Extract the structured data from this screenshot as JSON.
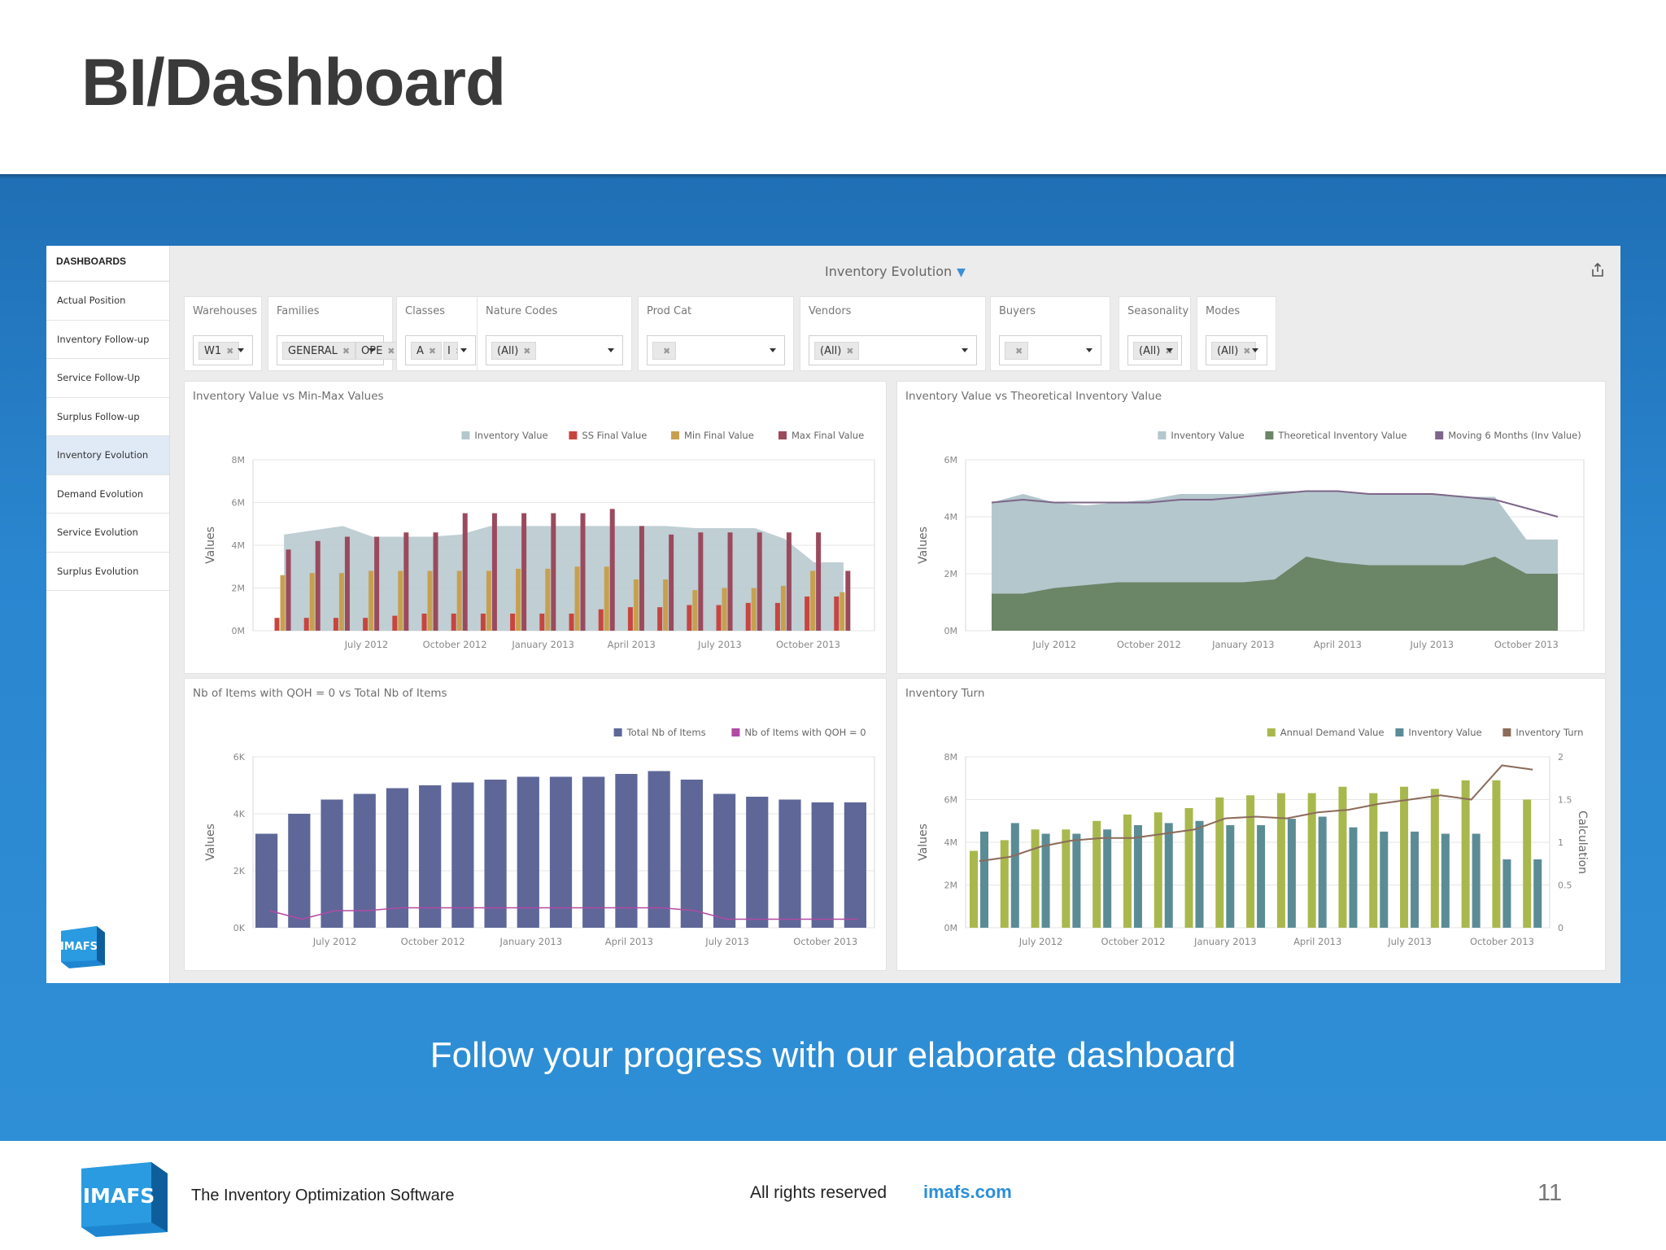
{
  "slide": {
    "title": "BI/Dashboard",
    "tagline": "Follow your progress with our elaborate dashboard"
  },
  "sidebar": {
    "heading": "DASHBOARDS",
    "items": [
      {
        "label": "Actual Position",
        "active": false
      },
      {
        "label": "Inventory Follow-up",
        "active": false
      },
      {
        "label": "Service Follow-Up",
        "active": false
      },
      {
        "label": "Surplus Follow-up",
        "active": false
      },
      {
        "label": "Inventory Evolution",
        "active": true
      },
      {
        "label": "Demand Evolution",
        "active": false
      },
      {
        "label": "Service Evolution",
        "active": false
      },
      {
        "label": "Surplus Evolution",
        "active": false
      }
    ],
    "logo_text": "IMAFS"
  },
  "dashboard": {
    "title": "Inventory Evolution",
    "filter_icon": "funnel-icon",
    "export_icon": "export-icon"
  },
  "filters": [
    {
      "label": "Warehouses",
      "tags": [
        "W1"
      ]
    },
    {
      "label": "Families",
      "tags": [
        "GENERAL",
        "OPE"
      ]
    },
    {
      "label": "Classes",
      "tags": [
        "A",
        "I"
      ]
    },
    {
      "label": "Nature Codes",
      "tags": [
        "(All)"
      ]
    },
    {
      "label": "Prod Cat",
      "tags": [
        ""
      ]
    },
    {
      "label": "Vendors",
      "tags": [
        "(All)"
      ]
    },
    {
      "label": "Buyers",
      "tags": [
        ""
      ]
    },
    {
      "label": "Seasonality",
      "tags": [
        "(All)"
      ]
    },
    {
      "label": "Modes",
      "tags": [
        "(All)"
      ]
    }
  ],
  "colors": {
    "inventory_value_area": "#b4c7cd",
    "ss_final": "#c8453f",
    "min_final": "#c7a04f",
    "max_final": "#9b4a5e",
    "theoretical": "#6b8567",
    "moving6": "#7d6689",
    "total_items": "#5e6798",
    "qoh_zero": "#b24aa5",
    "annual_demand": "#a9b84d",
    "inventory_value_bar": "#5b8c96",
    "inventory_turn": "#8c6b5b",
    "blue_band": "#2a86cf",
    "url_blue": "#2b8fd8"
  },
  "chart_data": [
    {
      "type": "bar",
      "title": "Inventory Value vs Min-Max Values",
      "ylabel": "Values",
      "ylim": [
        0,
        8
      ],
      "y_ticks": [
        "0M",
        "2M",
        "4M",
        "6M",
        "8M"
      ],
      "x_ticks": [
        "July 2012",
        "October 2012",
        "January 2013",
        "April 2013",
        "July 2013",
        "October 2013"
      ],
      "categories": [
        "Apr 2012",
        "May 2012",
        "Jun 2012",
        "Jul 2012",
        "Aug 2012",
        "Sep 2012",
        "Oct 2012",
        "Nov 2012",
        "Dec 2012",
        "Jan 2013",
        "Feb 2013",
        "Mar 2013",
        "Apr 2013",
        "May 2013",
        "Jun 2013",
        "Jul 2013",
        "Aug 2013",
        "Sep 2013",
        "Oct 2013",
        "Nov 2013"
      ],
      "series": [
        {
          "name": "Inventory Value",
          "kind": "area",
          "values": [
            4.5,
            4.7,
            4.9,
            4.4,
            4.4,
            4.4,
            4.5,
            4.9,
            4.9,
            4.9,
            4.9,
            4.9,
            4.9,
            4.9,
            4.8,
            4.8,
            4.8,
            4.3,
            3.2,
            3.2
          ]
        },
        {
          "name": "SS Final Value",
          "values": [
            0.6,
            0.6,
            0.6,
            0.6,
            0.7,
            0.8,
            0.8,
            0.8,
            0.8,
            0.8,
            0.8,
            1.0,
            1.1,
            1.1,
            1.2,
            1.2,
            1.3,
            1.3,
            1.6,
            1.6
          ]
        },
        {
          "name": "Min Final Value",
          "values": [
            2.6,
            2.7,
            2.7,
            2.8,
            2.8,
            2.8,
            2.8,
            2.8,
            2.9,
            2.9,
            3.0,
            3.0,
            2.4,
            2.4,
            1.9,
            2.0,
            2.0,
            2.1,
            2.8,
            1.8
          ]
        },
        {
          "name": "Max Final Value",
          "values": [
            3.8,
            4.2,
            4.4,
            4.4,
            4.6,
            4.6,
            5.5,
            5.5,
            5.5,
            5.5,
            5.5,
            5.7,
            4.9,
            4.5,
            4.6,
            4.6,
            4.6,
            4.6,
            4.6,
            2.8
          ]
        }
      ],
      "legend": "top-right"
    },
    {
      "type": "area",
      "title": "Inventory Value vs Theoretical Inventory Value",
      "ylabel": "Values",
      "ylim": [
        0,
        6
      ],
      "y_ticks": [
        "0M",
        "2M",
        "4M",
        "6M"
      ],
      "x_ticks": [
        "July 2012",
        "October 2012",
        "January 2013",
        "April 2013",
        "July 2013",
        "October 2013"
      ],
      "categories": [
        "May 2012",
        "Jun 2012",
        "Jul 2012",
        "Aug 2012",
        "Sep 2012",
        "Oct 2012",
        "Nov 2012",
        "Dec 2012",
        "Jan 2013",
        "Feb 2013",
        "Mar 2013",
        "Apr 2013",
        "May 2013",
        "Jun 2013",
        "Jul 2013",
        "Aug 2013",
        "Sep 2013",
        "Oct 2013",
        "Nov 2013"
      ],
      "series": [
        {
          "name": "Inventory Value",
          "values": [
            4.5,
            4.8,
            4.5,
            4.4,
            4.5,
            4.6,
            4.8,
            4.8,
            4.8,
            4.9,
            4.9,
            4.9,
            4.8,
            4.8,
            4.8,
            4.7,
            4.7,
            3.2,
            3.2
          ]
        },
        {
          "name": "Theoretical Inventory Value",
          "values": [
            1.3,
            1.3,
            1.5,
            1.6,
            1.7,
            1.7,
            1.7,
            1.7,
            1.7,
            1.8,
            2.6,
            2.4,
            2.3,
            2.3,
            2.3,
            2.3,
            2.6,
            2.0,
            2.0
          ]
        },
        {
          "name": "Moving 6 Months (Inv Value)",
          "values": [
            4.5,
            4.6,
            4.5,
            4.5,
            4.5,
            4.5,
            4.6,
            4.6,
            4.7,
            4.8,
            4.9,
            4.9,
            4.8,
            4.8,
            4.8,
            4.7,
            4.6,
            4.3,
            4.0
          ]
        }
      ],
      "legend": "top-right"
    },
    {
      "type": "bar",
      "title": "Nb of Items with QOH = 0 vs Total Nb of Items",
      "ylabel": "Values",
      "ylim": [
        0,
        6
      ],
      "y_ticks": [
        "0K",
        "2K",
        "4K",
        "6K"
      ],
      "x_ticks": [
        "July 2012",
        "October 2012",
        "January 2013",
        "April 2013",
        "July 2013",
        "October 2013"
      ],
      "categories": [
        "May 2012",
        "Jun 2012",
        "Jul 2012",
        "Aug 2012",
        "Sep 2012",
        "Oct 2012",
        "Nov 2012",
        "Dec 2012",
        "Jan 2013",
        "Feb 2013",
        "Mar 2013",
        "Apr 2013",
        "May 2013",
        "Jun 2013",
        "Jul 2013",
        "Aug 2013",
        "Sep 2013",
        "Oct 2013",
        "Nov 2013"
      ],
      "series": [
        {
          "name": "Total Nb of Items",
          "kind": "bar",
          "values": [
            3.3,
            4.0,
            4.5,
            4.7,
            4.9,
            5.0,
            5.1,
            5.2,
            5.3,
            5.3,
            5.3,
            5.4,
            5.5,
            5.2,
            4.7,
            4.6,
            4.5,
            4.4,
            4.4
          ]
        },
        {
          "name": "Nb of Items with QOH = 0",
          "kind": "line",
          "values": [
            0.6,
            0.3,
            0.6,
            0.6,
            0.7,
            0.7,
            0.7,
            0.7,
            0.7,
            0.7,
            0.7,
            0.7,
            0.7,
            0.6,
            0.3,
            0.3,
            0.3,
            0.3,
            0.3
          ]
        }
      ],
      "legend": "top-right"
    },
    {
      "type": "bar",
      "title": "Inventory Turn",
      "ylabel": "Values",
      "y2label": "Calculation",
      "ylim": [
        0,
        8
      ],
      "y2lim": [
        0,
        2
      ],
      "y_ticks": [
        "0M",
        "2M",
        "4M",
        "6M",
        "8M"
      ],
      "y2_ticks": [
        "0",
        "0.5",
        "1",
        "1.5",
        "2"
      ],
      "x_ticks": [
        "July 2012",
        "October 2012",
        "January 2013",
        "April 2013",
        "July 2013",
        "October 2013"
      ],
      "categories": [
        "May 2012",
        "Jun 2012",
        "Jul 2012",
        "Aug 2012",
        "Sep 2012",
        "Oct 2012",
        "Nov 2012",
        "Dec 2012",
        "Jan 2013",
        "Feb 2013",
        "Mar 2013",
        "Apr 2013",
        "May 2013",
        "Jun 2013",
        "Jul 2013",
        "Aug 2013",
        "Sep 2013",
        "Oct 2013",
        "Nov 2013"
      ],
      "series": [
        {
          "name": "Annual Demand Value",
          "kind": "bar",
          "values": [
            3.6,
            4.1,
            4.6,
            4.6,
            5.0,
            5.3,
            5.4,
            5.6,
            6.1,
            6.2,
            6.3,
            6.3,
            6.6,
            6.3,
            6.6,
            6.5,
            6.9,
            6.9,
            6.0
          ]
        },
        {
          "name": "Inventory Value",
          "kind": "bar",
          "values": [
            4.5,
            4.9,
            4.4,
            4.4,
            4.6,
            4.8,
            4.9,
            5.0,
            4.8,
            4.8,
            5.1,
            5.2,
            4.7,
            4.5,
            4.5,
            4.4,
            4.4,
            3.2,
            3.2
          ]
        },
        {
          "name": "Inventory Turn",
          "kind": "line",
          "values": [
            0.78,
            0.83,
            0.95,
            1.02,
            1.05,
            1.05,
            1.1,
            1.15,
            1.28,
            1.3,
            1.28,
            1.35,
            1.38,
            1.45,
            1.5,
            1.55,
            1.5,
            1.9,
            1.85
          ]
        }
      ],
      "legend": "top-right"
    }
  ],
  "footer": {
    "software": "The Inventory Optimization Software",
    "rights": "All rights reserved",
    "url": "imafs.com",
    "page": "11",
    "logo_text": "IMAFS"
  }
}
